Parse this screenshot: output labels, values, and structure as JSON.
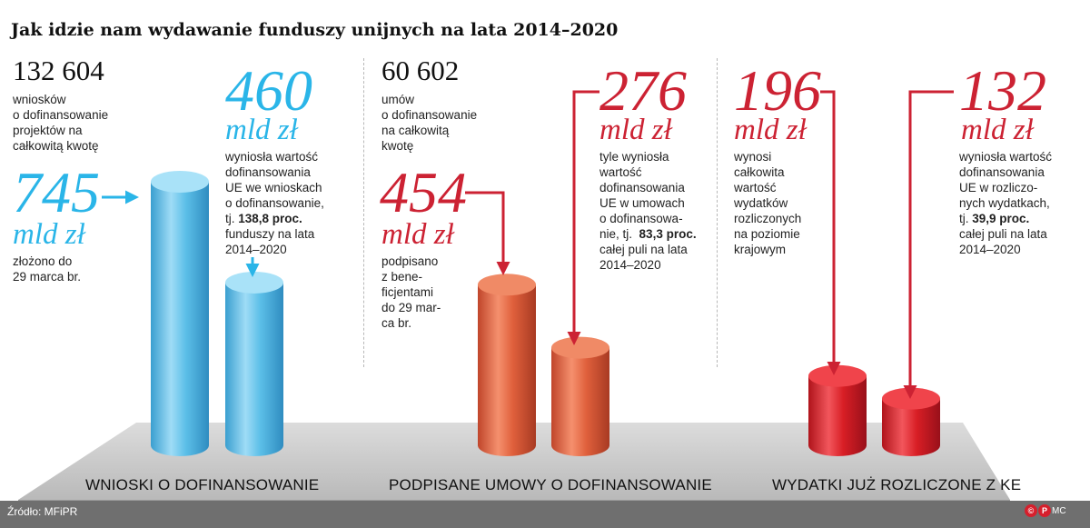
{
  "title": "Jak idzie nam wydawanie funduszy unijnych na lata 2014–2020",
  "source": "Źródło: MFiPR",
  "credit": {
    "logo1": "©",
    "logo2": "P",
    "author": "MC"
  },
  "panels": {
    "wnioski": {
      "count": "132 604",
      "count_desc": [
        "wniosków",
        "o dofinansowanie",
        "projektów na",
        "całkowitą kwotę"
      ],
      "total_value": "745",
      "total_unit": "mld zł",
      "total_desc": [
        "złożono do",
        "29 marca br."
      ],
      "eu_value": "460",
      "eu_unit": "mld zł",
      "eu_desc": [
        "wyniosła wartość",
        "dofinansowania",
        "UE we wnioskach",
        "o dofinansowanie,"
      ],
      "eu_pct_prefix": "tj. ",
      "eu_pct": "138,8 proc.",
      "eu_desc2": [
        "funduszy na lata",
        "2014–2020"
      ],
      "category": "WNIOSKI O DOFINANSOWANIE"
    },
    "umowy": {
      "count": "60 602",
      "count_desc": [
        "umów",
        "o dofinansowanie",
        "na całkowitą",
        "kwotę"
      ],
      "total_value": "454",
      "total_unit": "mld zł",
      "total_desc": [
        "podpisano",
        "z bene-",
        "ficjentami",
        "do 29 mar-",
        "ca br."
      ],
      "eu_value": "276",
      "eu_unit": "mld zł",
      "eu_desc": [
        "tyle wyniosła",
        "wartość",
        "dofinansowania",
        "UE w umowach",
        "o dofinansowa-",
        "nie, tj."
      ],
      "eu_pct": "83,3 proc.",
      "eu_desc2": [
        "całej puli na lata",
        "2014–2020"
      ],
      "category": "PODPISANE UMOWY O DOFINANSOWANIE"
    },
    "wydatki": {
      "total_value": "196",
      "total_unit": "mld zł",
      "total_desc": [
        "wynosi",
        "całkowita",
        "wartość",
        "wydatków",
        "rozliczonych",
        "na poziomie",
        "krajowym"
      ],
      "eu_value": "132",
      "eu_unit": "mld zł",
      "eu_desc": [
        "wyniosła wartość",
        "dofinansowania",
        "UE w rozliczo-",
        "nych wydatkach,"
      ],
      "eu_pct_prefix": "tj. ",
      "eu_pct": "39,9 proc.",
      "eu_desc2": [
        "całej puli na lata",
        "2014–2020"
      ],
      "category": "WYDATKI JUŻ ROZLICZONE Z KE"
    }
  },
  "chart_data": {
    "type": "bar",
    "title": "Jak idzie nam wydawanie funduszy unijnych na lata 2014–2020",
    "categories": [
      "WNIOSKI O DOFINANSOWANIE",
      "PODPISANE UMOWY O DOFINANSOWANIE",
      "WYDATKI JUŻ ROZLICZONE Z KE"
    ],
    "unit": "mld zł",
    "series": [
      {
        "values": [
          745,
          454,
          196
        ]
      },
      {
        "values": [
          460,
          276,
          132
        ]
      }
    ],
    "colors": {
      "wnioski": "#5cbfe8",
      "umowy": "#e0603c",
      "wydatki": "#d81e25"
    },
    "bars": [
      {
        "category": "WNIOSKI O DOFINANSOWANIE",
        "value": 745,
        "color": "#5cbfe8"
      },
      {
        "category": "WNIOSKI O DOFINANSOWANIE",
        "value": 460,
        "color": "#5cbfe8"
      },
      {
        "category": "PODPISANE UMOWY O DOFINANSOWANIE",
        "value": 454,
        "color": "#e0603c"
      },
      {
        "category": "PODPISANE UMOWY O DOFINANSOWANIE",
        "value": 276,
        "color": "#e0603c"
      },
      {
        "category": "WYDATKI JUŻ ROZLICZONE Z KE",
        "value": 196,
        "color": "#d81e25"
      },
      {
        "category": "WYDATKI JUŻ ROZLICZONE Z KE",
        "value": 132,
        "color": "#d81e25"
      }
    ],
    "ylim": [
      0,
      745
    ],
    "grid": false,
    "legend": "none"
  }
}
